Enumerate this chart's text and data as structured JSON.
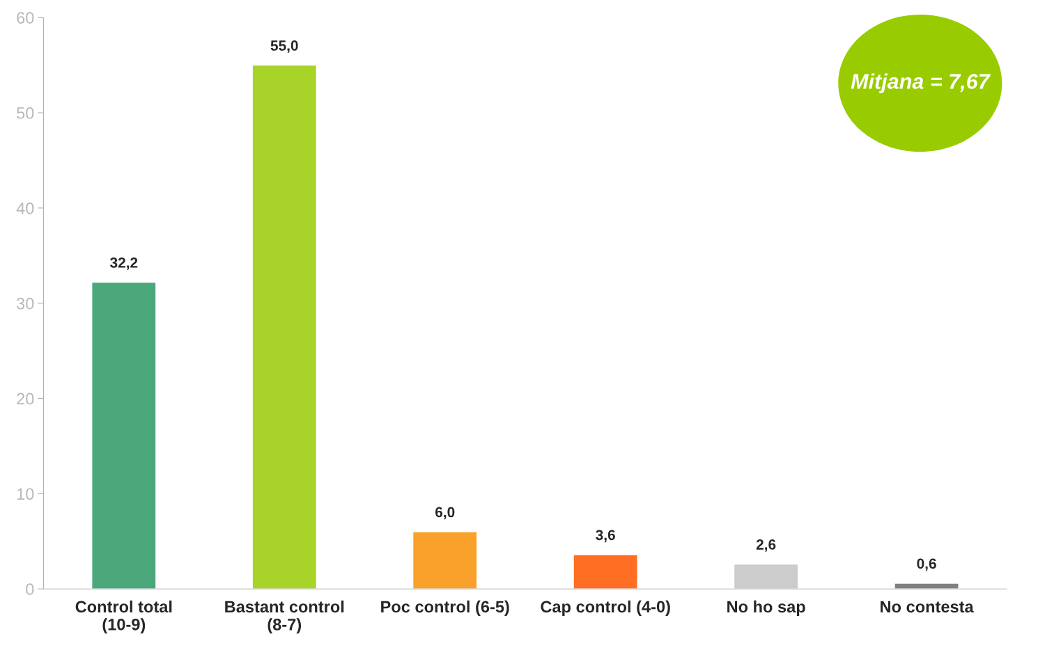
{
  "chart_data": {
    "type": "bar",
    "categories": [
      "Control total\n(10-9)",
      "Bastant control\n(8-7)",
      "Poc control (6-5)",
      "Cap control (4-0)",
      "No ho sap",
      "No contesta"
    ],
    "values": [
      32.2,
      55.0,
      6.0,
      3.6,
      2.6,
      0.6
    ],
    "colors": [
      "#4aa87a",
      "#a8d42a",
      "#f9a12a",
      "#ff6e22",
      "#cccccc",
      "#808080"
    ],
    "value_labels": [
      "32,2",
      "55,0",
      "6,0",
      "3,6",
      "2,6",
      "0,6"
    ],
    "ylim": [
      0,
      60
    ],
    "yticks": [
      0,
      10,
      20,
      30,
      40,
      50,
      60
    ],
    "annotations": [
      "Mitjana = 7,67"
    ],
    "grid": false
  }
}
